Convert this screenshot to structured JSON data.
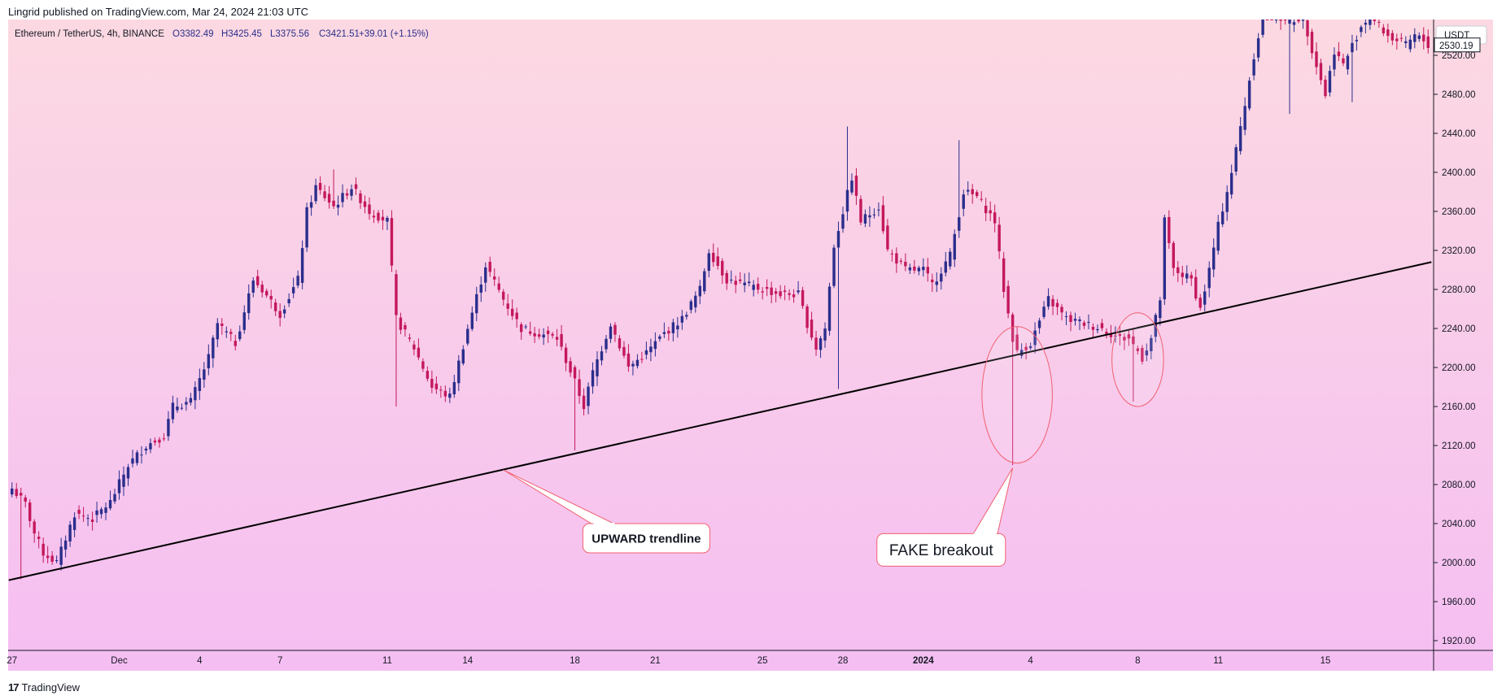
{
  "header": {
    "publisher_line": "Lingrid published on TradingView.com, Mar 24, 2024 21:03 UTC"
  },
  "footer": {
    "brand": "TradingView",
    "logo_mark": "17"
  },
  "legend": {
    "symbol": "Ethereum / TetherUS, 4h, BINANCE",
    "open": "O3382.49",
    "high": "H3425.45",
    "low": "L3375.56",
    "close": "C3421.51",
    "change": "+39.01 (+1.15%)"
  },
  "colors": {
    "bg_top": "#fcd9e2",
    "bg_bottom": "#f5bef2",
    "up": "#2a2e8c",
    "down": "#c4185c",
    "trendline": "#000000",
    "annotation": "#f06070"
  },
  "chart_data": {
    "type": "candlestick",
    "title": "Ethereum / TetherUS, 4h, BINANCE",
    "y_axis": {
      "unit_label": "USDT",
      "ticks": [
        1920,
        1960,
        2000,
        2040,
        2080,
        2120,
        2160,
        2200,
        2240,
        2280,
        2320,
        2360,
        2400,
        2440,
        2480,
        2520
      ],
      "tick_labels": [
        "1920.00",
        "1960.00",
        "2000.00",
        "2040.00",
        "2080.00",
        "2120.00",
        "2160.00",
        "2200.00",
        "2240.00",
        "2280.00",
        "2320.00",
        "2360.00",
        "2400.00",
        "2440.00",
        "2480.00",
        "2520.00"
      ],
      "range": [
        1912,
        2567
      ],
      "last_price_label": "2530.19",
      "last_price": 2530.19
    },
    "x_axis": {
      "labels": [
        {
          "text": "27",
          "bar": 0
        },
        {
          "text": "Dec",
          "bar": 24
        },
        {
          "text": "4",
          "bar": 42
        },
        {
          "text": "7",
          "bar": 60
        },
        {
          "text": "11",
          "bar": 84
        },
        {
          "text": "14",
          "bar": 102
        },
        {
          "text": "18",
          "bar": 126
        },
        {
          "text": "21",
          "bar": 144
        },
        {
          "text": "25",
          "bar": 168
        },
        {
          "text": "28",
          "bar": 186
        },
        {
          "text": "2024",
          "bar": 204,
          "bold": true
        },
        {
          "text": "4",
          "bar": 228
        },
        {
          "text": "8",
          "bar": 252
        },
        {
          "text": "11",
          "bar": 270
        },
        {
          "text": "15",
          "bar": 294
        }
      ]
    },
    "bar_count": 318,
    "price_anchors": [
      [
        0,
        2076
      ],
      [
        3,
        2060
      ],
      [
        5,
        2030
      ],
      [
        7,
        2010
      ],
      [
        10,
        2000
      ],
      [
        14,
        2050
      ],
      [
        18,
        2045
      ],
      [
        22,
        2062
      ],
      [
        26,
        2100
      ],
      [
        30,
        2120
      ],
      [
        34,
        2130
      ],
      [
        36,
        2160
      ],
      [
        40,
        2165
      ],
      [
        44,
        2210
      ],
      [
        46,
        2245
      ],
      [
        50,
        2225
      ],
      [
        54,
        2290
      ],
      [
        56,
        2280
      ],
      [
        60,
        2255
      ],
      [
        64,
        2290
      ],
      [
        66,
        2360
      ],
      [
        68,
        2385
      ],
      [
        72,
        2365
      ],
      [
        76,
        2385
      ],
      [
        80,
        2360
      ],
      [
        84,
        2350
      ],
      [
        86,
        2250
      ],
      [
        90,
        2220
      ],
      [
        94,
        2180
      ],
      [
        98,
        2170
      ],
      [
        102,
        2240
      ],
      [
        106,
        2305
      ],
      [
        110,
        2270
      ],
      [
        114,
        2240
      ],
      [
        118,
        2235
      ],
      [
        122,
        2230
      ],
      [
        126,
        2185
      ],
      [
        128,
        2160
      ],
      [
        130,
        2195
      ],
      [
        134,
        2245
      ],
      [
        138,
        2200
      ],
      [
        142,
        2215
      ],
      [
        146,
        2235
      ],
      [
        150,
        2250
      ],
      [
        154,
        2280
      ],
      [
        156,
        2320
      ],
      [
        160,
        2290
      ],
      [
        164,
        2285
      ],
      [
        168,
        2280
      ],
      [
        172,
        2275
      ],
      [
        176,
        2275
      ],
      [
        178,
        2245
      ],
      [
        180,
        2220
      ],
      [
        182,
        2240
      ],
      [
        184,
        2325
      ],
      [
        186,
        2360
      ],
      [
        188,
        2395
      ],
      [
        190,
        2350
      ],
      [
        194,
        2365
      ],
      [
        196,
        2320
      ],
      [
        200,
        2300
      ],
      [
        204,
        2300
      ],
      [
        206,
        2285
      ],
      [
        210,
        2315
      ],
      [
        213,
        2380
      ],
      [
        216,
        2375
      ],
      [
        220,
        2350
      ],
      [
        222,
        2280
      ],
      [
        224,
        2230
      ],
      [
        225,
        2215
      ],
      [
        228,
        2225
      ],
      [
        232,
        2270
      ],
      [
        236,
        2250
      ],
      [
        240,
        2245
      ],
      [
        244,
        2240
      ],
      [
        248,
        2230
      ],
      [
        250,
        2230
      ],
      [
        253,
        2210
      ],
      [
        255,
        2230
      ],
      [
        257,
        2270
      ],
      [
        258,
        2350
      ],
      [
        260,
        2300
      ],
      [
        264,
        2290
      ],
      [
        266,
        2260
      ],
      [
        268,
        2300
      ],
      [
        270,
        2345
      ],
      [
        273,
        2400
      ],
      [
        276,
        2470
      ],
      [
        278,
        2520
      ],
      [
        280,
        2560
      ],
      [
        283,
        2560
      ],
      [
        286,
        2555
      ],
      [
        289,
        2560
      ],
      [
        292,
        2510
      ],
      [
        294,
        2480
      ],
      [
        296,
        2525
      ],
      [
        298,
        2510
      ],
      [
        300,
        2530
      ],
      [
        302,
        2550
      ],
      [
        304,
        2560
      ],
      [
        306,
        2550
      ],
      [
        308,
        2540
      ],
      [
        310,
        2535
      ],
      [
        312,
        2530
      ],
      [
        314,
        2540
      ],
      [
        316,
        2535
      ],
      [
        317,
        2530.19
      ]
    ],
    "wick_events": [
      {
        "bar": 224,
        "low": 2100
      },
      {
        "bar": 185,
        "low": 2178
      },
      {
        "bar": 86,
        "low": 2160
      },
      {
        "bar": 126,
        "low": 2115
      },
      {
        "bar": 187,
        "high": 2447
      },
      {
        "bar": 212,
        "high": 2433
      },
      {
        "bar": 72,
        "high": 2403
      },
      {
        "bar": 251,
        "low": 2165
      },
      {
        "bar": 2,
        "low": 1983
      },
      {
        "bar": 286,
        "low": 2460
      },
      {
        "bar": 300,
        "low": 2472
      }
    ],
    "trendline": {
      "points": [
        [
          0,
          1982
        ],
        [
          317,
          2308
        ]
      ],
      "label": "UPWARD trendline"
    },
    "annotations": [
      {
        "label": "FAKE breakout",
        "type": "ellipse",
        "bar_center": 225,
        "price_center": 2172,
        "bar_halfwidth": 7.5,
        "price_halfwidth": 70
      },
      {
        "label": "",
        "type": "ellipse",
        "bar_center": 252,
        "price_center": 2208,
        "bar_halfwidth": 5.5,
        "price_halfwidth": 48
      }
    ],
    "callouts": [
      {
        "label": "UPWARD trendline",
        "anchor_bar": 110,
        "anchor_price": 2095,
        "box_bar": 142,
        "box_price": 2025
      },
      {
        "label": "FAKE breakout",
        "anchor_bar": 224,
        "anchor_price": 2097,
        "box_bar": 208,
        "box_price": 2013
      }
    ]
  }
}
